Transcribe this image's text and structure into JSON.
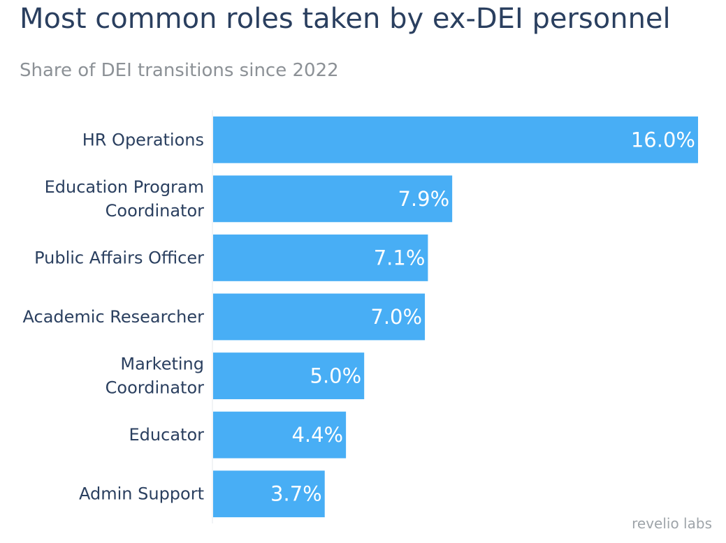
{
  "chart_data": {
    "type": "bar",
    "orientation": "horizontal",
    "title": "Most common roles taken by ex-DEI personnel",
    "subtitle": "Share of DEI transitions since 2022",
    "categories": [
      "HR Operations",
      "Education Program Coordinator",
      "Public Affairs Officer",
      "Academic Researcher",
      "Marketing Coordinator",
      "Educator",
      "Admin Support"
    ],
    "category_lines": [
      [
        "HR Operations"
      ],
      [
        "Education Program",
        "Coordinator"
      ],
      [
        "Public Affairs Officer"
      ],
      [
        "Academic Researcher"
      ],
      [
        "Marketing",
        "Coordinator"
      ],
      [
        "Educator"
      ],
      [
        "Admin Support"
      ]
    ],
    "values": [
      16.0,
      7.9,
      7.1,
      7.0,
      5.0,
      4.4,
      3.7
    ],
    "value_labels": [
      "16.0%",
      "7.9%",
      "7.1%",
      "7.0%",
      "5.0%",
      "4.4%",
      "3.7%"
    ],
    "xlim": [
      0,
      16.0
    ],
    "grid": false,
    "legend": "none",
    "colors": {
      "bar": "#48aef5",
      "label_text": "#2a3f5f",
      "value_text": "#ffffff",
      "axis_line": "#e6e9ee"
    }
  },
  "watermark": "revelio labs"
}
